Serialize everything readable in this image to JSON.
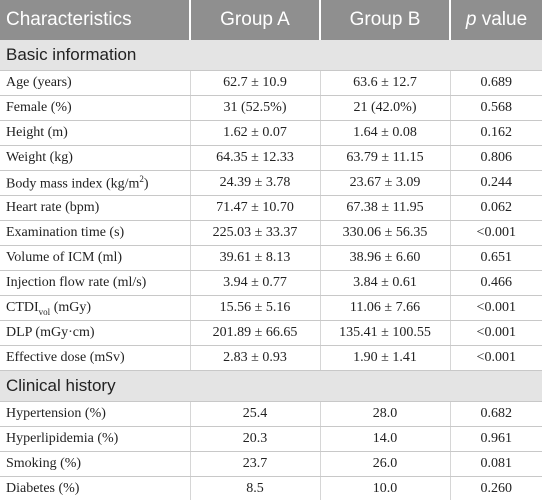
{
  "table": {
    "header": [
      "Characteristics",
      "Group A",
      "Group B",
      {
        "italic": "p",
        "rest": " value"
      }
    ],
    "sections": [
      {
        "title": "Basic information",
        "rows": [
          [
            "Age (years)",
            "62.7 ± 10.9",
            "63.6 ± 12.7",
            "0.689"
          ],
          [
            "Female (%)",
            "31 (52.5%)",
            "21 (42.0%)",
            "0.568"
          ],
          [
            "Height (m)",
            "1.62 ± 0.07",
            "1.64 ± 0.08",
            "0.162"
          ],
          [
            "Weight (kg)",
            "64.35 ± 12.33",
            "63.79 ± 11.15",
            "0.806"
          ],
          [
            {
              "base": "Body mass index (kg/m",
              "sup": "2",
              "rest": ")"
            },
            "24.39 ± 3.78",
            "23.67 ± 3.09",
            "0.244"
          ],
          [
            "Heart rate (bpm)",
            "71.47 ± 10.70",
            "67.38 ± 11.95",
            "0.062"
          ],
          [
            "Examination time (s)",
            "225.03 ± 33.37",
            "330.06 ± 56.35",
            "<0.001"
          ],
          [
            "Volume of ICM (ml)",
            "39.61 ± 8.13",
            "38.96 ± 6.60",
            "0.651"
          ],
          [
            "Injection flow rate (ml/s)",
            "3.94 ± 0.77",
            "3.84 ± 0.61",
            "0.466"
          ],
          [
            {
              "base": "CTDI",
              "sub": "vol",
              "rest": " (mGy)"
            },
            "15.56 ± 5.16",
            "11.06 ± 7.66",
            "<0.001"
          ],
          [
            "DLP (mGy·cm)",
            "201.89 ± 66.65",
            "135.41 ± 100.55",
            "<0.001"
          ],
          [
            "Effective dose (mSv)",
            "2.83 ± 0.93",
            "1.90 ± 1.41",
            "<0.001"
          ]
        ]
      },
      {
        "title": "Clinical history",
        "rows": [
          [
            "Hypertension (%)",
            "25.4",
            "28.0",
            "0.682"
          ],
          [
            "Hyperlipidemia (%)",
            "20.3",
            "14.0",
            "0.961"
          ],
          [
            "Smoking (%)",
            "23.7",
            "26.0",
            "0.081"
          ],
          [
            "Diabetes (%)",
            "8.5",
            "10.0",
            "0.260"
          ]
        ]
      }
    ]
  }
}
